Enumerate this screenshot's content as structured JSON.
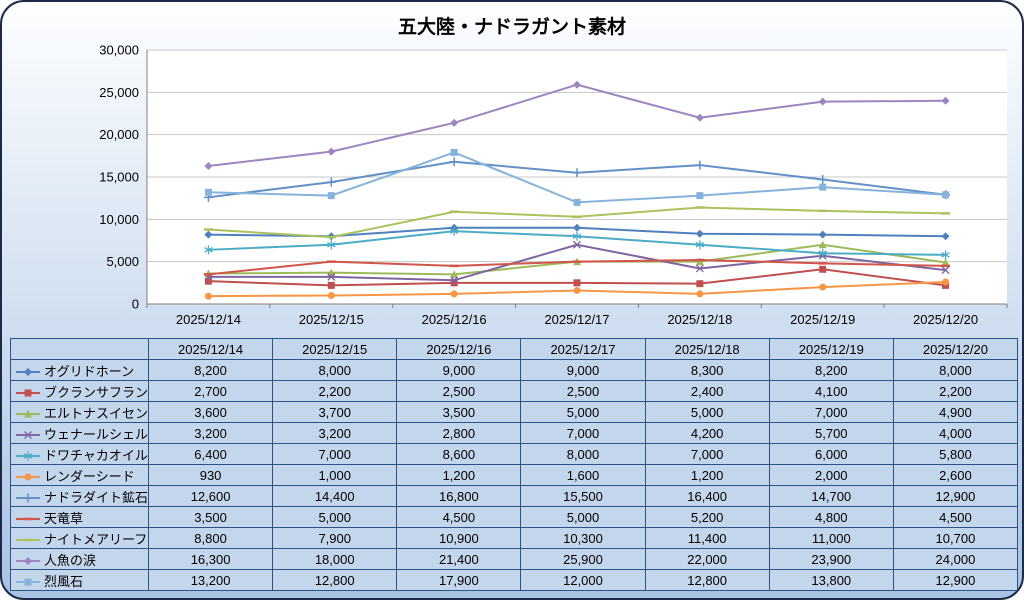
{
  "title": "五大陸・ナドラガント素材",
  "chart_data": {
    "type": "line",
    "title": "五大陸・ナドラガント素材",
    "x": [
      "2025/12/14",
      "2025/12/15",
      "2025/12/16",
      "2025/12/17",
      "2025/12/18",
      "2025/12/19",
      "2025/12/20"
    ],
    "ylim": [
      0,
      30000
    ],
    "ytick_step": 5000,
    "ytick_labels": [
      "0",
      "5,000",
      "10,000",
      "15,000",
      "20,000",
      "25,000",
      "30,000"
    ],
    "grid": true,
    "legend_position": "table-left-column",
    "series": [
      {
        "name": "オグリドホーン",
        "color": "#4F81BD",
        "marker": "diamond",
        "values": [
          8200,
          8000,
          9000,
          9000,
          8300,
          8200,
          8000
        ]
      },
      {
        "name": "ブクランサフラン",
        "color": "#C0504D",
        "marker": "square",
        "values": [
          2700,
          2200,
          2500,
          2500,
          2400,
          4100,
          2200
        ]
      },
      {
        "name": "エルトナスイセン",
        "color": "#9BBB59",
        "marker": "triangle",
        "values": [
          3600,
          3700,
          3500,
          5000,
          5000,
          7000,
          4900
        ]
      },
      {
        "name": "ウェナールシェル",
        "color": "#8064A2",
        "marker": "x",
        "values": [
          3200,
          3200,
          2800,
          7000,
          4200,
          5700,
          4000
        ]
      },
      {
        "name": "ドワチャカオイル",
        "color": "#4BACC6",
        "marker": "asterisk",
        "values": [
          6400,
          7000,
          8600,
          8000,
          7000,
          6000,
          5800
        ]
      },
      {
        "name": "レンダーシード",
        "color": "#F79646",
        "marker": "circle",
        "values": [
          930,
          1000,
          1200,
          1600,
          1200,
          2000,
          2600
        ]
      },
      {
        "name": "ナドラダイト鉱石",
        "color": "#6291C8",
        "marker": "plus",
        "values": [
          12600,
          14400,
          16800,
          15500,
          16400,
          14700,
          12900
        ]
      },
      {
        "name": "天竜草",
        "color": "#D1564A",
        "marker": "dash",
        "values": [
          3500,
          5000,
          4500,
          5000,
          5200,
          4800,
          4500
        ]
      },
      {
        "name": "ナイトメアリーフ",
        "color": "#ABC25D",
        "marker": "dash",
        "values": [
          8800,
          7900,
          10900,
          10300,
          11400,
          11000,
          10700
        ]
      },
      {
        "name": "人魚の涙",
        "color": "#9C85C0",
        "marker": "diamond",
        "values": [
          16300,
          18000,
          21400,
          25900,
          22000,
          23900,
          24000
        ]
      },
      {
        "name": "烈風石",
        "color": "#85B3DB",
        "marker": "square",
        "values": [
          13200,
          12800,
          17900,
          12000,
          12800,
          13800,
          12900
        ]
      }
    ]
  },
  "table": {
    "corner_label": ""
  },
  "colors": {
    "panel_border": "#1B2A4A",
    "table_border": "#2E5288",
    "cell_bg": "#C3D6EC",
    "plot_bg": "#FFFFFF",
    "grid_line": "#C8C8C8",
    "axis_line": "#7F7F7F",
    "text": "#000000"
  }
}
